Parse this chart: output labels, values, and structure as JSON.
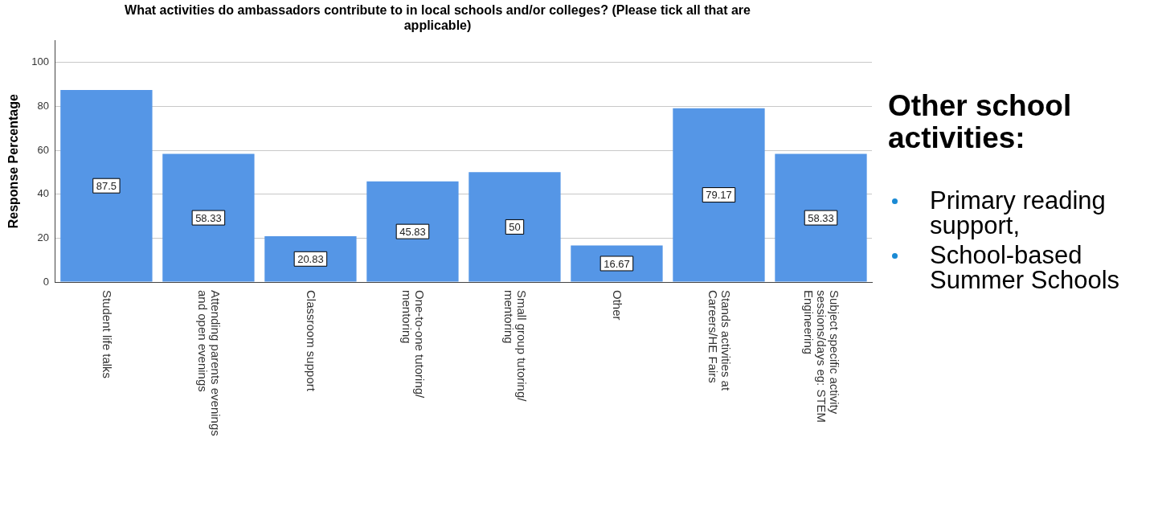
{
  "chart_data": {
    "type": "bar",
    "title": "What activities do ambassadors contribute to in local schools and/or colleges? (Please tick all that are applicable)",
    "ylabel": "Response Percentage",
    "categories": [
      "Student life talks",
      "Attending parents evenings and open evenings",
      "Classroom support",
      "One-to-one tutoring/ mentoring",
      "Small group tutoring/ mentoring",
      "Other",
      "Stands activities at Careers/HE Fairs",
      "Subject specific activity sessions/days eg: STEM Engineering"
    ],
    "values": [
      87.5,
      58.33,
      20.83,
      45.83,
      50,
      16.67,
      79.17,
      58.33
    ],
    "color": "#5596e6",
    "data_labels": true,
    "ylim": [
      0,
      110
    ],
    "yticks": [
      0,
      20,
      40,
      60,
      80,
      100
    ],
    "grid": "y",
    "annotations": [
      "Other school activities:",
      "Primary reading support,",
      "School-based Summer Schools"
    ]
  }
}
